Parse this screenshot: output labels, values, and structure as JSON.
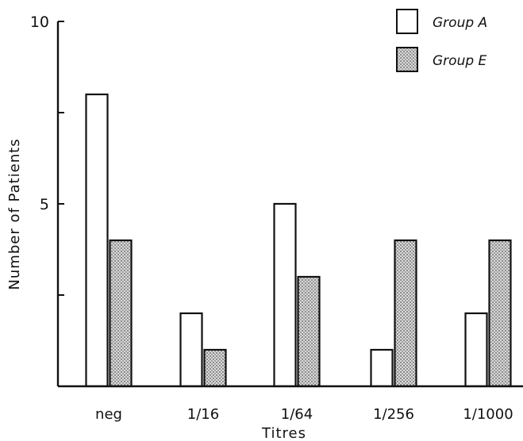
{
  "chart_data": {
    "type": "bar",
    "categories": [
      "neg",
      "1/16",
      "1/64",
      "1/256",
      "1/1000"
    ],
    "series": [
      {
        "name": "Group A",
        "values": [
          8,
          2,
          5,
          1,
          2
        ],
        "pattern": "open",
        "color": "#ffffff"
      },
      {
        "name": "Group E",
        "values": [
          4,
          1,
          3,
          4,
          4
        ],
        "pattern": "stippled",
        "color": "#bdbdbd"
      }
    ],
    "title": "",
    "xlabel": "Titres",
    "ylabel": "Number of Patients",
    "ylim": [
      0,
      10
    ],
    "yticks_labeled": [
      5,
      10
    ],
    "yticks_minor": [
      2.5,
      7.5
    ],
    "grid": false,
    "legend_position": "top-right"
  }
}
